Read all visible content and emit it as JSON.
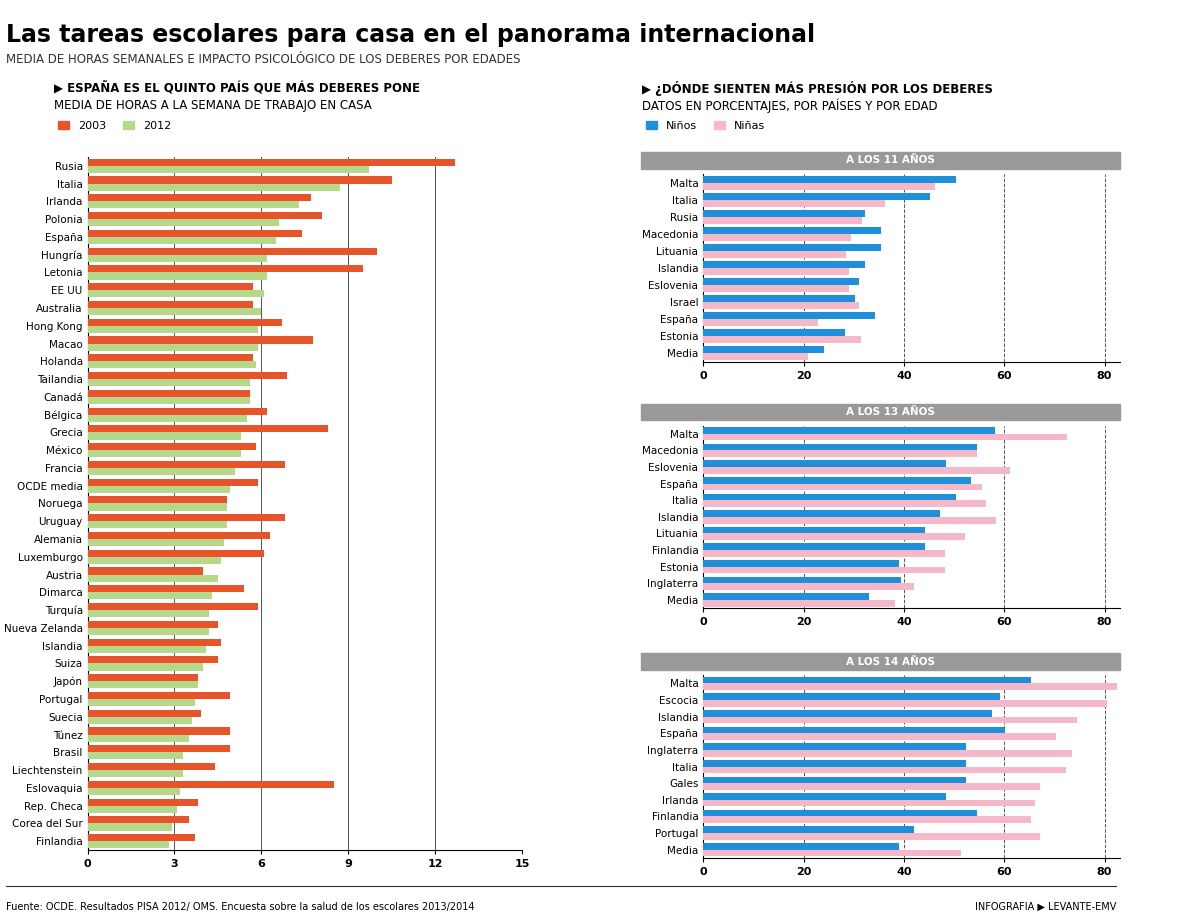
{
  "header": {
    "title": "Las tareas escolares para casa en el panorama internacional",
    "subtitle": "MEDIA DE HORAS SEMANALES E IMPACTO PSICOLÓGICO DE LOS DEBERES POR EDADES"
  },
  "footer": {
    "source": "Fuente: OCDE. Resultados PISA 2012/ OMS. Encuesta sobre la salud de los escolares 2013/2014",
    "credit": "INFOGRAFIA ▶ LEVANTE-EMV"
  },
  "panel_group": {
    "title": "▶ ¿DÓNDE SIENTEN MÁS PRESIÓN POR LOS DEBERES",
    "subtitle": "DATOS EN PORCENTAJES, POR PAÍSES Y POR EDAD"
  },
  "chart_data": [
    {
      "type": "bar",
      "orientation": "horizontal",
      "title": "▶ ESPAÑA ES EL QUINTO PAÍS QUE MÁS DEBERES PONE",
      "subtitle": "MEDIA DE HORAS A LA SEMANA DE TRABAJO EN CASA",
      "categories": [
        "Rusia",
        "Italia",
        "Irlanda",
        "Polonia",
        "España",
        "Hungría",
        "Letonia",
        "EE UU",
        "Australia",
        "Hong Kong",
        "Macao",
        "Holanda",
        "Tailandia",
        "Canadá",
        "Bélgica",
        "Grecia",
        "México",
        "Francia",
        "OCDE media",
        "Noruega",
        "Uruguay",
        "Alemania",
        "Luxemburgo",
        "Austria",
        "Dimarca",
        "Turquía",
        "Nueva Zelanda",
        "Islandia",
        "Suiza",
        "Japón",
        "Portugal",
        "Suecia",
        "Túnez",
        "Brasil",
        "Liechtenstein",
        "Eslovaquia",
        "Rep. Checa",
        "Corea del Sur",
        "Finlandia"
      ],
      "series": [
        {
          "name": "2003",
          "color": "#e8542a",
          "values": [
            12.7,
            10.5,
            7.7,
            8.1,
            7.4,
            10.0,
            9.5,
            5.7,
            5.7,
            6.7,
            7.8,
            5.7,
            6.9,
            5.6,
            6.2,
            8.3,
            5.8,
            6.8,
            5.9,
            4.8,
            6.8,
            6.3,
            6.1,
            4.0,
            5.4,
            5.9,
            4.5,
            4.6,
            4.5,
            3.8,
            4.9,
            3.9,
            4.9,
            4.9,
            4.4,
            8.5,
            3.8,
            3.5,
            3.7
          ]
        },
        {
          "name": "2012",
          "color": "#b5d88b",
          "values": [
            9.7,
            8.7,
            7.3,
            6.6,
            6.5,
            6.2,
            6.2,
            6.1,
            6.0,
            5.9,
            5.9,
            5.8,
            5.6,
            5.6,
            5.5,
            5.3,
            5.3,
            5.1,
            4.9,
            4.8,
            4.8,
            4.7,
            4.6,
            4.5,
            4.3,
            4.2,
            4.2,
            4.1,
            4.0,
            3.8,
            3.7,
            3.6,
            3.5,
            3.3,
            3.3,
            3.2,
            3.1,
            2.9,
            2.8
          ]
        }
      ],
      "xlim": [
        0,
        15
      ],
      "xticks": [
        0,
        3,
        6,
        9,
        12,
        15
      ],
      "grid": true,
      "legend": "upper left"
    },
    {
      "type": "bar",
      "orientation": "horizontal",
      "title": "A LOS 11 AÑOS",
      "categories": [
        "Malta",
        "Italia",
        "Rusia",
        "Macedonia",
        "Lituania",
        "Islandia",
        "Eslovenia",
        "Israel",
        "España",
        "Estonia",
        "Media"
      ],
      "series": [
        {
          "name": "Niños",
          "color": "#1e8fd8",
          "values": [
            50.3,
            45.3,
            32.2,
            35.4,
            35.4,
            32.2,
            31.0,
            30.2,
            34.2,
            28.2,
            24.1
          ]
        },
        {
          "name": "Niñas",
          "color": "#f5b8c9",
          "values": [
            46.3,
            36.2,
            31.6,
            29.4,
            28.4,
            29.0,
            29.0,
            31.0,
            22.9,
            31.4,
            20.9
          ]
        }
      ],
      "xlim": [
        0,
        83
      ],
      "xticks": [
        0,
        20,
        40,
        60,
        80
      ],
      "grid": true,
      "legend": "upper left"
    },
    {
      "type": "bar",
      "orientation": "horizontal",
      "title": "A LOS 13 AÑOS",
      "categories": [
        "Malta",
        "Macedonia",
        "Eslovenia",
        "España",
        "Italia",
        "Islandia",
        "Lituania",
        "Finlandia",
        "Estonia",
        "Inglaterra",
        "Media"
      ],
      "series": [
        {
          "name": "Niños",
          "color": "#1e8fd8",
          "values": [
            58.2,
            54.5,
            48.3,
            53.3,
            50.3,
            47.3,
            44.3,
            44.3,
            39.0,
            39.4,
            33.0
          ]
        },
        {
          "name": "Niñas",
          "color": "#f5b8c9",
          "values": [
            72.6,
            54.5,
            61.2,
            55.5,
            56.3,
            58.3,
            52.1,
            48.1,
            48.1,
            42.1,
            38.2
          ]
        }
      ],
      "xlim": [
        0,
        83
      ],
      "xticks": [
        0,
        20,
        40,
        60,
        80
      ],
      "grid": true
    },
    {
      "type": "bar",
      "orientation": "horizontal",
      "title": "A LOS 14 AÑOS",
      "categories": [
        "Malta",
        "Escocia",
        "Islandia",
        "España",
        "Inglaterra",
        "Italia",
        "Gales",
        "Irlanda",
        "Finlandia",
        "Portugal",
        "Media"
      ],
      "series": [
        {
          "name": "Niños",
          "color": "#1e8fd8",
          "values": [
            65.4,
            59.2,
            57.5,
            60.2,
            52.3,
            52.3,
            52.3,
            48.3,
            54.5,
            42.1,
            39.0
          ]
        },
        {
          "name": "Niñas",
          "color": "#f5b8c9",
          "values": [
            82.5,
            80.5,
            74.5,
            70.4,
            73.5,
            72.4,
            67.2,
            66.2,
            65.4,
            67.2,
            51.3
          ]
        }
      ],
      "xlim": [
        0,
        83
      ],
      "xticks": [
        0,
        20,
        40,
        60,
        80
      ],
      "grid": true
    }
  ]
}
